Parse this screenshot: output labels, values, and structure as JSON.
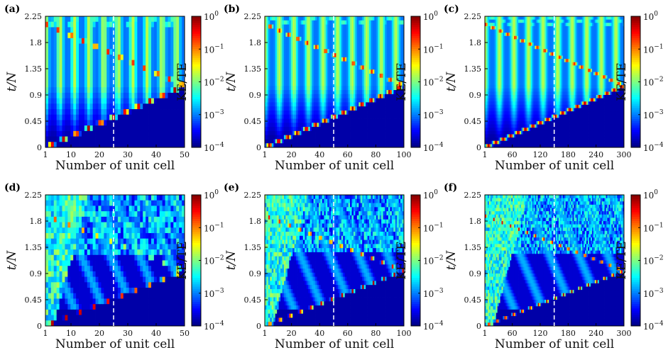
{
  "chart_data": [
    {
      "panel_label": "(a)",
      "type": "heatmap",
      "xlabel": "Number of unit cell",
      "ylabel": "t/N",
      "cbar_label": "KE/TE",
      "xticks": [
        1,
        10,
        20,
        30,
        40,
        50
      ],
      "xlim": [
        1,
        50
      ],
      "yticks": [
        0,
        0.45,
        0.9,
        1.35,
        1.8,
        2.25
      ],
      "ylim": [
        0,
        2.25
      ],
      "color_scale": "log",
      "cbar_range": [
        0.0001,
        1
      ],
      "cbar_exponents": [
        0,
        -1,
        -2,
        -3,
        -4
      ],
      "colormap": "jet",
      "marker_line_x": 25,
      "pattern": "clean-light-cone",
      "rows": 24,
      "cols": 50
    },
    {
      "panel_label": "(b)",
      "type": "heatmap",
      "xlabel": "Number of unit cell",
      "ylabel": "t/N",
      "cbar_label": "KE/TE",
      "xticks": [
        1,
        20,
        40,
        60,
        80,
        100
      ],
      "xlim": [
        1,
        100
      ],
      "yticks": [
        0,
        0.45,
        0.9,
        1.35,
        1.8,
        2.25
      ],
      "ylim": [
        0,
        2.25
      ],
      "color_scale": "log",
      "cbar_range": [
        0.0001,
        1
      ],
      "cbar_exponents": [
        0,
        -1,
        -2,
        -3,
        -4
      ],
      "colormap": "jet",
      "marker_line_x": 50,
      "pattern": "clean-light-cone",
      "rows": 32,
      "cols": 80
    },
    {
      "panel_label": "(c)",
      "type": "heatmap",
      "xlabel": "Number of unit cell",
      "ylabel": "t/N",
      "cbar_label": "KE/TE",
      "xticks": [
        1,
        60,
        120,
        180,
        240,
        300
      ],
      "xlim": [
        1,
        300
      ],
      "yticks": [
        0,
        0.45,
        0.9,
        1.35,
        1.8,
        2.25
      ],
      "ylim": [
        0,
        2.25
      ],
      "color_scale": "log",
      "cbar_range": [
        0.0001,
        1
      ],
      "cbar_exponents": [
        0,
        -1,
        -2,
        -3,
        -4
      ],
      "colormap": "jet",
      "marker_line_x": 150,
      "pattern": "clean-light-cone",
      "rows": 40,
      "cols": 100
    },
    {
      "panel_label": "(d)",
      "type": "heatmap",
      "xlabel": "Number of unit cell",
      "ylabel": "t/N",
      "cbar_label": "KE/TE",
      "xticks": [
        1,
        10,
        20,
        30,
        40,
        50
      ],
      "xlim": [
        1,
        50
      ],
      "yticks": [
        0,
        0.45,
        0.9,
        1.35,
        1.8,
        2.25
      ],
      "ylim": [
        0,
        2.25
      ],
      "color_scale": "log",
      "cbar_range": [
        0.0001,
        1
      ],
      "cbar_exponents": [
        0,
        -1,
        -2,
        -3,
        -4
      ],
      "colormap": "jet",
      "marker_line_x": 25,
      "pattern": "disordered",
      "rows": 24,
      "cols": 50
    },
    {
      "panel_label": "(e)",
      "type": "heatmap",
      "xlabel": "Number of unit cell",
      "ylabel": "t/N",
      "cbar_label": "KE/TE",
      "xticks": [
        1,
        20,
        40,
        60,
        80,
        100
      ],
      "xlim": [
        1,
        100
      ],
      "yticks": [
        0,
        0.45,
        0.9,
        1.35,
        1.8,
        2.25
      ],
      "ylim": [
        0,
        2.25
      ],
      "color_scale": "log",
      "cbar_range": [
        0.0001,
        1
      ],
      "cbar_exponents": [
        0,
        -1,
        -2,
        -3,
        -4
      ],
      "colormap": "jet",
      "marker_line_x": 50,
      "pattern": "disordered",
      "rows": 32,
      "cols": 80
    },
    {
      "panel_label": "(f)",
      "type": "heatmap",
      "xlabel": "Number of unit cell",
      "ylabel": "t/N",
      "cbar_label": "KE/TE",
      "xticks": [
        1,
        60,
        120,
        180,
        240,
        300
      ],
      "xlim": [
        1,
        300
      ],
      "yticks": [
        0,
        0.45,
        0.9,
        1.35,
        1.8,
        2.25
      ],
      "ylim": [
        0,
        2.25
      ],
      "color_scale": "log",
      "cbar_range": [
        0.0001,
        1
      ],
      "cbar_exponents": [
        0,
        -1,
        -2,
        -3,
        -4
      ],
      "colormap": "jet",
      "marker_line_x": 150,
      "pattern": "disordered",
      "rows": 40,
      "cols": 100
    }
  ]
}
